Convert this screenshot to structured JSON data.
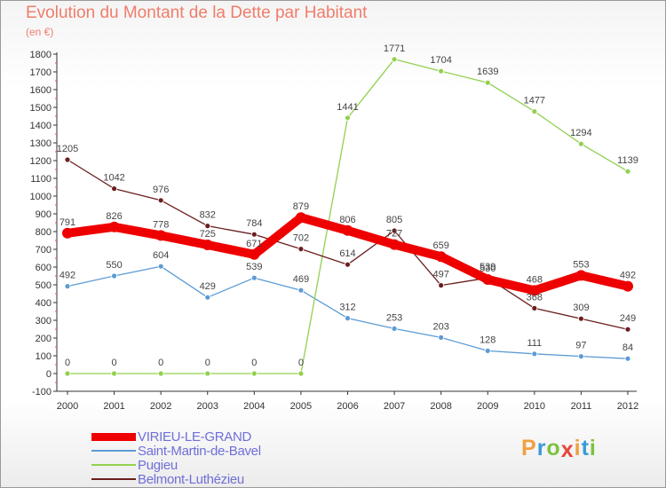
{
  "header": {
    "title": "Evolution du Montant de la Dette par Habitant",
    "subtitle": "(en €)"
  },
  "logo": {
    "letters": [
      "P",
      "r",
      "o",
      "x",
      "i",
      "t",
      "i"
    ],
    "colors": [
      "#f0a040",
      "#3a9ad9",
      "#7cc242",
      "#e8443a",
      "#f0a040",
      "#3a9ad9",
      "#7cc242"
    ]
  },
  "chart_data": {
    "type": "line",
    "title": "Evolution du Montant de la Dette par Habitant",
    "subtitle": "(en €)",
    "xlabel": "",
    "ylabel": "",
    "x": [
      "2000",
      "2001",
      "2002",
      "2003",
      "2004",
      "2005",
      "2006",
      "2007",
      "2008",
      "2009",
      "2010",
      "2011",
      "2012"
    ],
    "ylim": [
      -100,
      1800
    ],
    "yticks": [
      -100,
      0,
      100,
      200,
      300,
      400,
      500,
      600,
      700,
      800,
      900,
      1000,
      1100,
      1200,
      1300,
      1400,
      1500,
      1600,
      1700,
      1800
    ],
    "grid": false,
    "legend_position": "bottom-left",
    "series": [
      {
        "name": "VIRIEU-LE-GRAND",
        "color": "#ee0000",
        "values": [
          791,
          826,
          778,
          725,
          671,
          879,
          806,
          727,
          659,
          530,
          468,
          553,
          492
        ]
      },
      {
        "name": "Saint-Martin-de-Bavel",
        "color": "#5b9bd5",
        "values": [
          492,
          550,
          604,
          429,
          539,
          469,
          312,
          253,
          203,
          128,
          111,
          97,
          84
        ]
      },
      {
        "name": "Pugieu",
        "color": "#92d050",
        "values": [
          0,
          0,
          0,
          0,
          0,
          0,
          1441,
          1771,
          1704,
          1639,
          1477,
          1294,
          1139
        ]
      },
      {
        "name": "Belmont-Luthézieu",
        "color": "#6b1e1e",
        "values": [
          1205,
          1042,
          976,
          832,
          784,
          702,
          614,
          805,
          497,
          539,
          368,
          309,
          249
        ]
      }
    ]
  }
}
